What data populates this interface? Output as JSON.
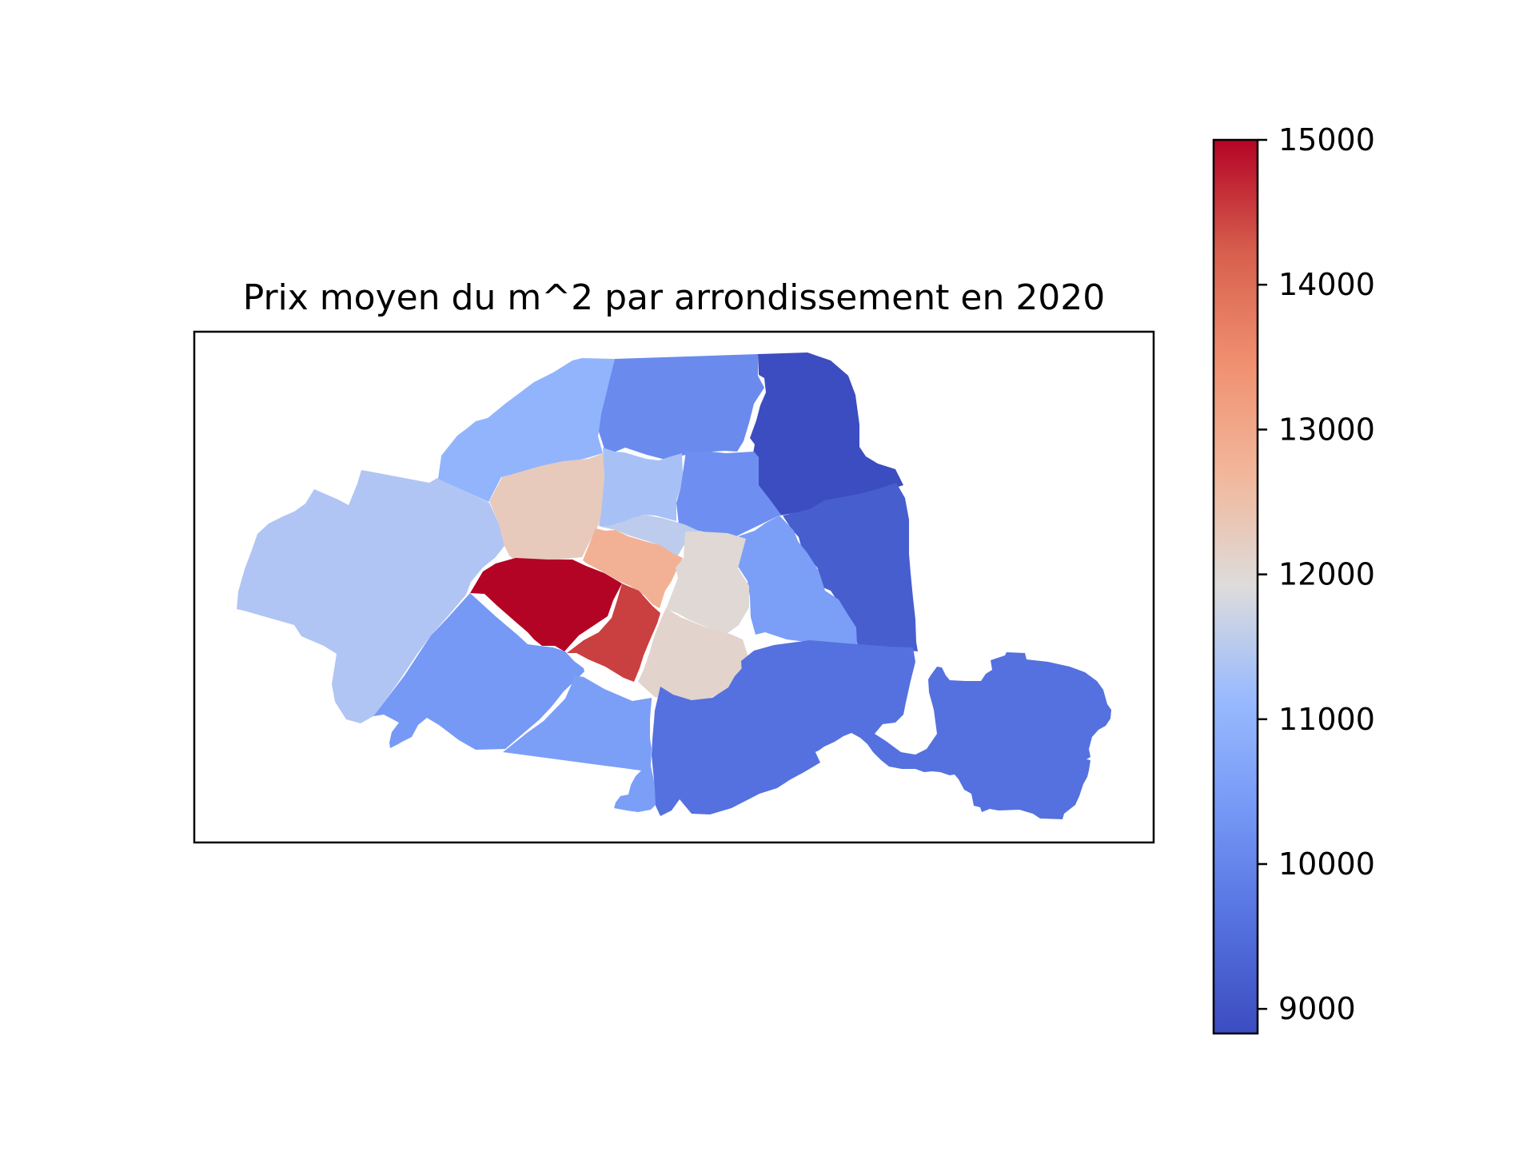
{
  "map": {
    "title": "Prix moyen du m^2 par arrondissement en 2020",
    "colormap": "coolwarm",
    "colorbar": {
      "min": 8830,
      "max": 15000,
      "ticks": [
        {
          "value": 9000,
          "label": "9000"
        },
        {
          "value": 10000,
          "label": "10000"
        },
        {
          "value": 11000,
          "label": "11000"
        },
        {
          "value": 12000,
          "label": "12000"
        },
        {
          "value": 13000,
          "label": "13000"
        },
        {
          "value": 14000,
          "label": "14000"
        },
        {
          "value": 15000,
          "label": "15000"
        }
      ]
    },
    "regions": [
      {
        "id": "west-16",
        "value": 11400
      },
      {
        "id": "north-west-17",
        "value": 11000
      },
      {
        "id": "north-18",
        "value": 10100
      },
      {
        "id": "north-east-19",
        "value": 8850
      },
      {
        "id": "east-20",
        "value": 9200
      },
      {
        "id": "center-8",
        "value": 12300
      },
      {
        "id": "center-9",
        "value": 11300
      },
      {
        "id": "center-10",
        "value": 10200
      },
      {
        "id": "center-3",
        "value": 11550
      },
      {
        "id": "east-11",
        "value": 10500
      },
      {
        "id": "center-2",
        "value": 12800
      },
      {
        "id": "center-4",
        "value": 12000
      },
      {
        "id": "center-1",
        "value": 15000
      },
      {
        "id": "center-6",
        "value": 14500
      },
      {
        "id": "center-5",
        "value": 12100
      },
      {
        "id": "south-west-15",
        "value": 10400
      },
      {
        "id": "south-14",
        "value": 10500
      },
      {
        "id": "south-13",
        "value": 9600
      },
      {
        "id": "south-east-12",
        "value": 9600
      }
    ]
  }
}
